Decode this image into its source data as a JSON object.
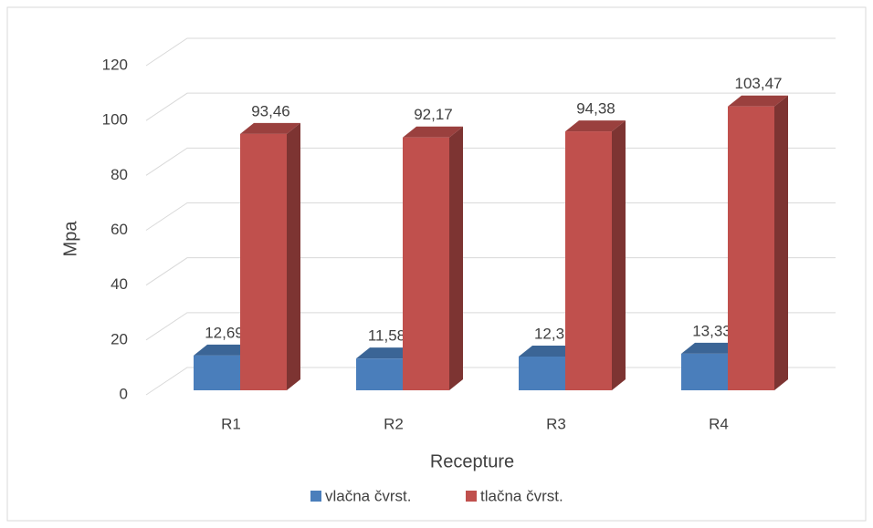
{
  "chart_data": {
    "type": "bar3d",
    "categories": [
      "R1",
      "R2",
      "R3",
      "R4"
    ],
    "series": [
      {
        "name": "vlačna čvrst.",
        "color": "#4a7ebb",
        "values": [
          12.69,
          11.58,
          12.3,
          13.33
        ],
        "value_labels": [
          "12,69",
          "11,58",
          "12,3",
          "13,33"
        ]
      },
      {
        "name": "tlačna čvrst.",
        "color": "#c0504d",
        "values": [
          93.46,
          92.17,
          94.38,
          103.47
        ],
        "value_labels": [
          "93,46",
          "92,17",
          "94,38",
          "103,47"
        ]
      }
    ],
    "y_label": "Mpa",
    "x_label": "Recepture",
    "ylim": [
      0,
      120
    ],
    "yticks": [
      0,
      20,
      40,
      60,
      80,
      100,
      120
    ],
    "grid": true,
    "legend": "bottom"
  }
}
